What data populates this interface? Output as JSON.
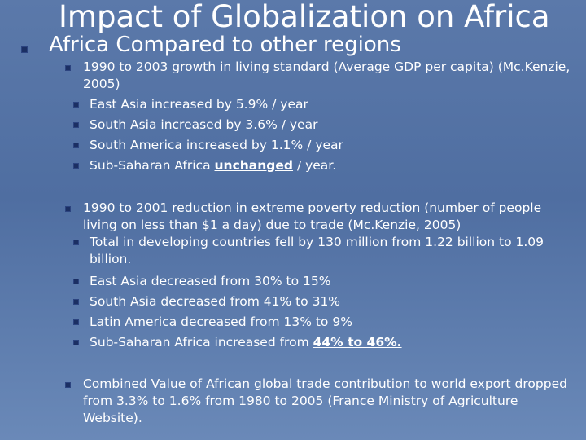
{
  "slide": {
    "title": "Impact of Globalization on Africa",
    "heading": "Africa Compared to other regions"
  },
  "section1": {
    "text": "1990 to 2003 growth in living standard (Average GDP per capita) (Mc.Kenzie, 2005)",
    "items": [
      "East Asia increased by 5.9% / year",
      "South Asia increased by 3.6% / year",
      "South America increased by 1.1% / year"
    ],
    "last_prefix": "Sub-Saharan Africa ",
    "last_emph": "unchanged",
    "last_suffix": " / year."
  },
  "section2": {
    "text": "1990 to 2001 reduction in extreme poverty reduction (number of people living on less than $1 a day) due to trade (Mc.Kenzie, 2005)",
    "item1": "Total in developing countries fell by 130 million from 1.22 billion to 1.09 billion.",
    "items": [
      "East Asia decreased from 30% to 15%",
      "South Asia decreased from 41% to 31%",
      "Latin America decreased from 13% to 9%"
    ],
    "last_prefix": "Sub-Saharan Africa increased from ",
    "last_emph": "44% to 46%."
  },
  "section3": {
    "text": "Combined Value of African global trade contribution to world export dropped from 3.3% to 1.6% from 1980 to 2005 (France Ministry of Agriculture Website)."
  },
  "colors": {
    "background": "#5575a6",
    "text": "#ffffff",
    "bullet": "#1b2f63"
  }
}
